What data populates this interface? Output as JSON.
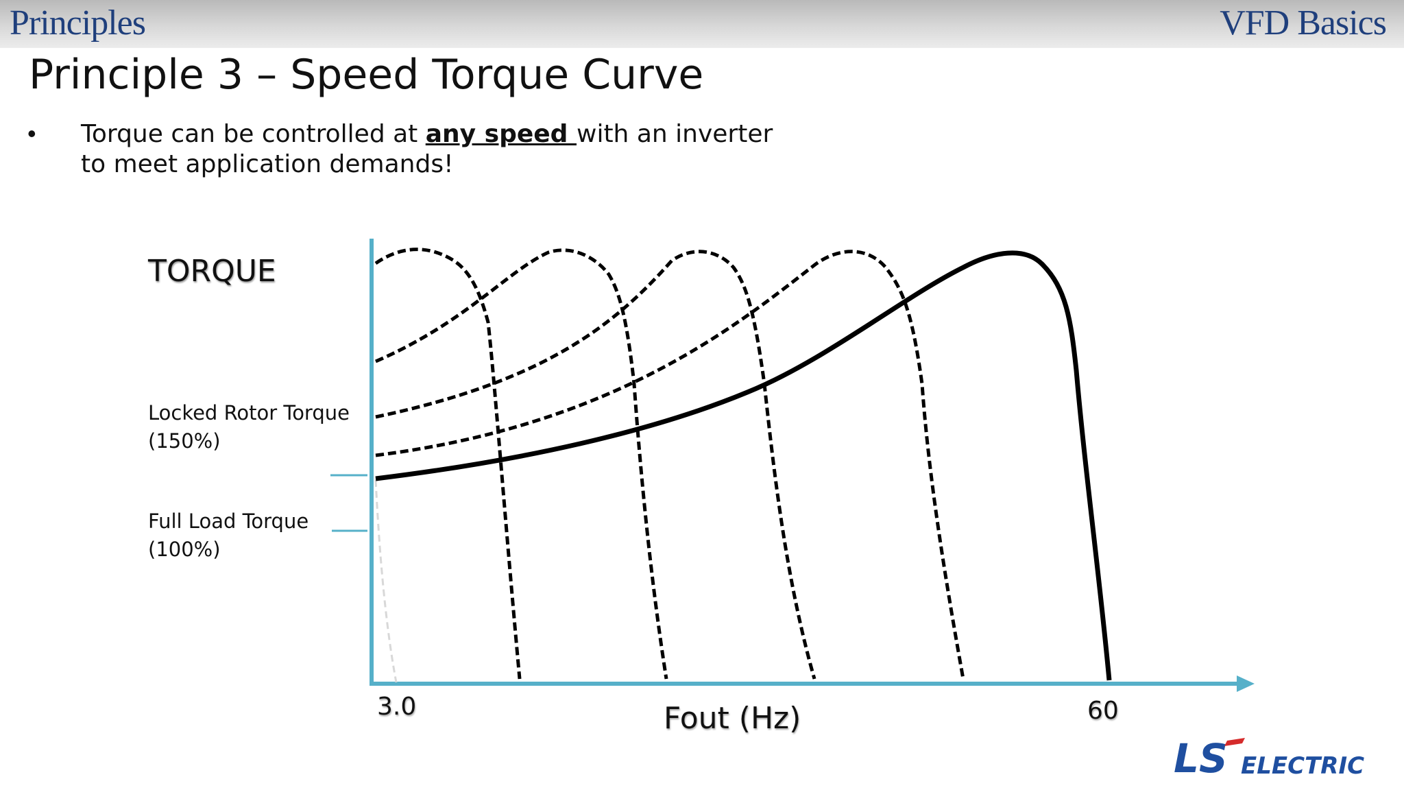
{
  "header": {
    "section": "Principles",
    "deck": "VFD Basics"
  },
  "slide": {
    "title": "Principle 3 – Speed Torque Curve",
    "bullet": {
      "before": "Torque can be controlled at ",
      "emphasis": "any speed ",
      "after": "with an inverter to meet application demands!"
    }
  },
  "diagram": {
    "y_title": "TORQUE",
    "locked_rotor_line1": "Locked Rotor Torque",
    "locked_rotor_line2": "(150%)",
    "full_load_line1": "Full Load Torque",
    "full_load_line2": "(100%)",
    "x_title": "Fout (Hz)",
    "x_start": "3.0",
    "x_end": "60",
    "axis_color": "#56b0c9",
    "curve_color": "#000000",
    "curves": [
      "dashed",
      "dashed",
      "dashed",
      "dashed",
      "solid"
    ]
  },
  "logo": {
    "text_ls": "LS",
    "text_electric": "ELECTRIC",
    "color": "#1f4fa0"
  }
}
